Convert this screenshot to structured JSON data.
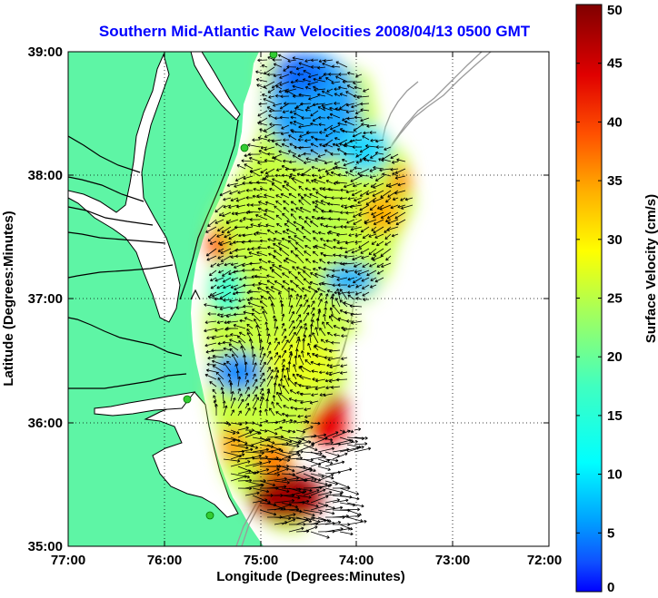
{
  "chart_data": {
    "type": "heatmap",
    "title": "Southern Mid-Atlantic Raw Velocities 2008/04/13 0500 GMT",
    "xlabel": "Longitude (Degrees:Minutes)",
    "ylabel": "Latitude (Degrees:Minutes)",
    "x_ticks": [
      "77:00",
      "76:00",
      "75:00",
      "74:00",
      "73:00",
      "72:00"
    ],
    "y_ticks": [
      "39:00",
      "38:00",
      "37:00",
      "36:00",
      "35:00"
    ],
    "xlim": [
      -77,
      -72
    ],
    "ylim": [
      35,
      39
    ],
    "grid": true,
    "colorbar": {
      "label": "Surface Velocity (cm/s)",
      "ticks": [
        0,
        5,
        10,
        15,
        20,
        25,
        30,
        35,
        40,
        45,
        50
      ],
      "range": [
        0,
        50
      ],
      "colormap": "jet"
    },
    "colors": {
      "land": "#5ef5a5",
      "water": "#ffffff",
      "title": "#0000ff",
      "coastline": "#000000",
      "bathymetry": "#9a9a9a",
      "station": "#33cc33"
    },
    "stations": [
      {
        "lon": -74.9,
        "lat": 39.0
      },
      {
        "lon": -75.08,
        "lat": 38.22
      },
      {
        "lon": -75.25,
        "lat": 36.18
      },
      {
        "lon": -75.52,
        "lat": 35.27
      }
    ]
  }
}
